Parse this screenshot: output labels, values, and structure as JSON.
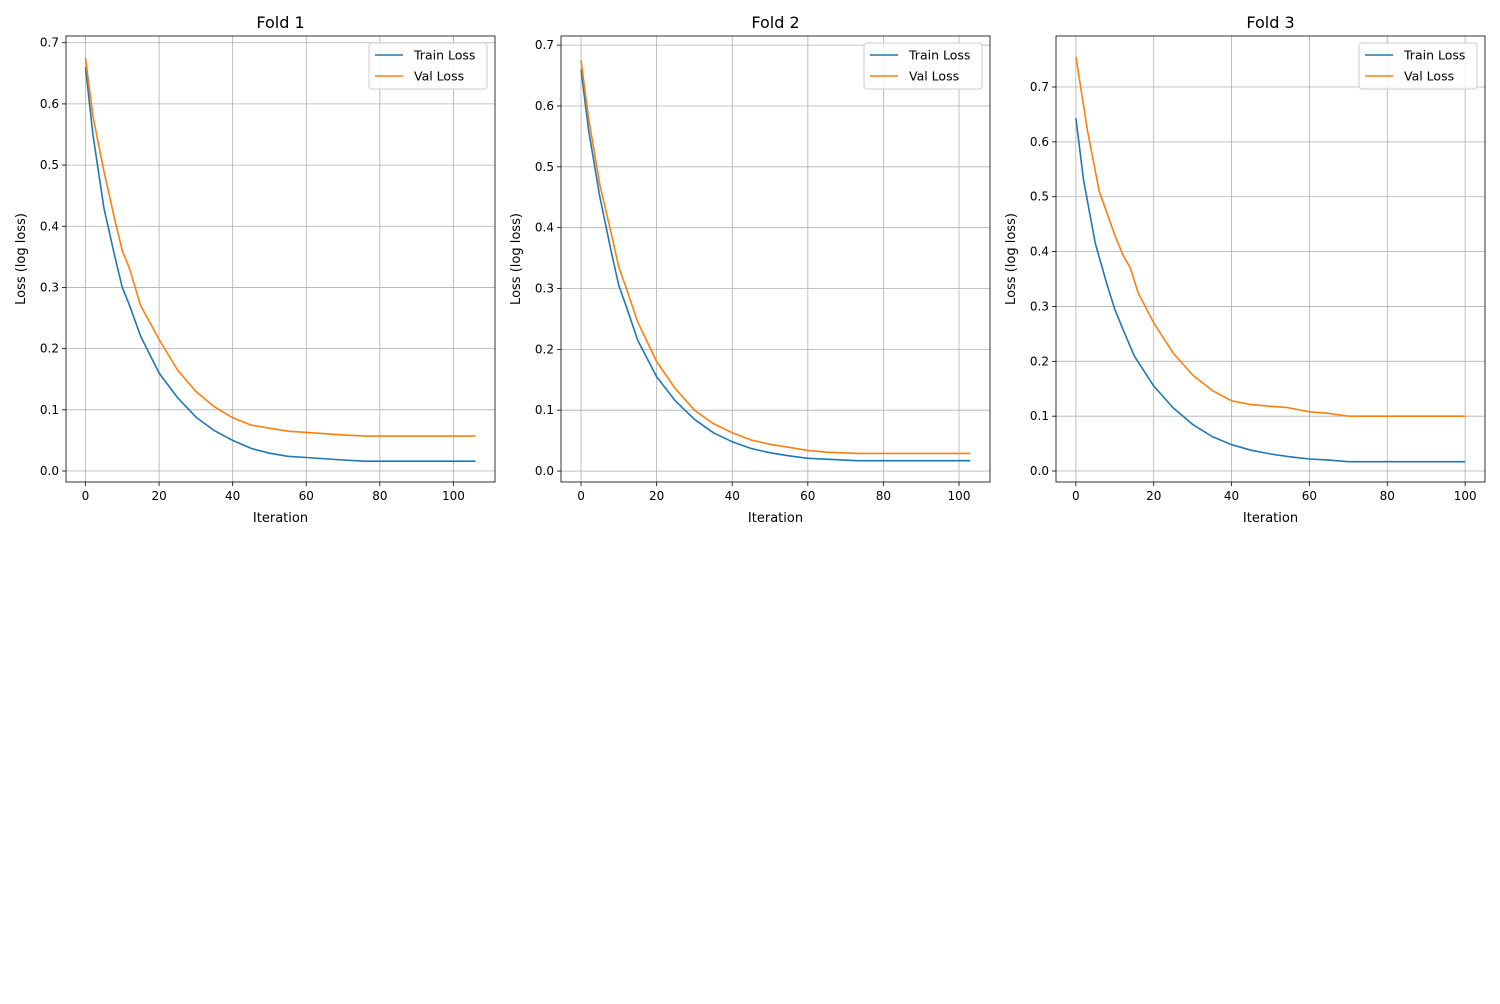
{
  "colors": {
    "train": "#1f77b4",
    "val": "#ff7f0e",
    "grid": "#b0b0b0"
  },
  "chart_data": [
    {
      "type": "line",
      "title": "Fold 1",
      "xlabel": "Iteration",
      "ylabel": "Loss (log loss)",
      "xlim": [
        -5.3,
        111.3
      ],
      "ylim": [
        -0.018,
        0.711
      ],
      "xticks": [
        0,
        20,
        40,
        60,
        80,
        100
      ],
      "yticks": [
        "0.0",
        "0.1",
        "0.2",
        "0.3",
        "0.4",
        "0.5",
        "0.6",
        "0.7"
      ],
      "grid": true,
      "legend": "top-right",
      "series": [
        {
          "name": "Train Loss",
          "x": [
            0,
            2,
            5,
            8,
            10,
            12,
            15,
            20,
            25,
            30,
            35,
            40,
            45,
            50,
            55,
            60,
            70,
            76,
            106
          ],
          "y": [
            0.66,
            0.55,
            0.43,
            0.35,
            0.3,
            0.27,
            0.22,
            0.16,
            0.12,
            0.088,
            0.066,
            0.05,
            0.037,
            0.029,
            0.024,
            0.022,
            0.018,
            0.016,
            0.016
          ]
        },
        {
          "name": "Val Loss",
          "x": [
            0,
            2,
            5,
            8,
            10,
            12,
            15,
            20,
            25,
            30,
            35,
            40,
            45,
            50,
            55,
            60,
            70,
            76,
            106
          ],
          "y": [
            0.675,
            0.58,
            0.49,
            0.41,
            0.36,
            0.33,
            0.27,
            0.215,
            0.165,
            0.13,
            0.105,
            0.087,
            0.075,
            0.07,
            0.065,
            0.063,
            0.059,
            0.057,
            0.057
          ]
        }
      ]
    },
    {
      "type": "line",
      "title": "Fold 2",
      "xlabel": "Iteration",
      "ylabel": "Loss (log loss)",
      "xlim": [
        -5.3,
        108.2
      ],
      "ylim": [
        -0.018,
        0.715
      ],
      "xticks": [
        0,
        20,
        40,
        60,
        80,
        100
      ],
      "yticks": [
        "0.0",
        "0.1",
        "0.2",
        "0.3",
        "0.4",
        "0.5",
        "0.6",
        "0.7"
      ],
      "grid": true,
      "legend": "top-right",
      "series": [
        {
          "name": "Train Loss",
          "x": [
            0,
            2,
            5,
            8,
            10,
            12,
            15,
            20,
            25,
            30,
            35,
            40,
            45,
            50,
            55,
            60,
            73,
            103
          ],
          "y": [
            0.66,
            0.56,
            0.45,
            0.36,
            0.305,
            0.27,
            0.215,
            0.155,
            0.115,
            0.085,
            0.063,
            0.048,
            0.037,
            0.03,
            0.025,
            0.021,
            0.017,
            0.017
          ]
        },
        {
          "name": "Val Loss",
          "x": [
            0,
            2,
            5,
            8,
            10,
            12,
            15,
            20,
            25,
            30,
            35,
            40,
            45,
            50,
            55,
            60,
            65,
            73,
            103
          ],
          "y": [
            0.675,
            0.58,
            0.47,
            0.39,
            0.335,
            0.3,
            0.245,
            0.18,
            0.135,
            0.1,
            0.078,
            0.063,
            0.051,
            0.044,
            0.039,
            0.034,
            0.031,
            0.029,
            0.029
          ]
        }
      ]
    },
    {
      "type": "line",
      "title": "Fold 3",
      "xlabel": "Iteration",
      "ylabel": "Loss (log loss)",
      "xlim": [
        -5.1,
        105.1
      ],
      "ylim": [
        -0.02,
        0.793
      ],
      "xticks": [
        0,
        20,
        40,
        60,
        80,
        100
      ],
      "yticks": [
        "0.0",
        "0.1",
        "0.2",
        "0.3",
        "0.4",
        "0.5",
        "0.6",
        "0.7"
      ],
      "grid": true,
      "legend": "top-right",
      "series": [
        {
          "name": "Train Loss",
          "x": [
            0,
            2,
            5,
            8,
            10,
            12,
            15,
            20,
            25,
            30,
            35,
            40,
            45,
            50,
            55,
            60,
            65,
            70,
            100
          ],
          "y": [
            0.643,
            0.53,
            0.415,
            0.34,
            0.295,
            0.26,
            0.21,
            0.155,
            0.115,
            0.085,
            0.063,
            0.048,
            0.038,
            0.031,
            0.026,
            0.022,
            0.02,
            0.017,
            0.017
          ]
        },
        {
          "name": "Val Loss",
          "x": [
            0,
            3,
            6,
            8,
            10,
            12,
            14,
            16,
            20,
            25,
            30,
            35,
            40,
            45,
            50,
            54,
            60,
            65,
            70,
            100
          ],
          "y": [
            0.755,
            0.62,
            0.51,
            0.47,
            0.43,
            0.395,
            0.37,
            0.325,
            0.27,
            0.215,
            0.175,
            0.147,
            0.128,
            0.121,
            0.118,
            0.116,
            0.108,
            0.105,
            0.1,
            0.1
          ]
        }
      ]
    }
  ]
}
